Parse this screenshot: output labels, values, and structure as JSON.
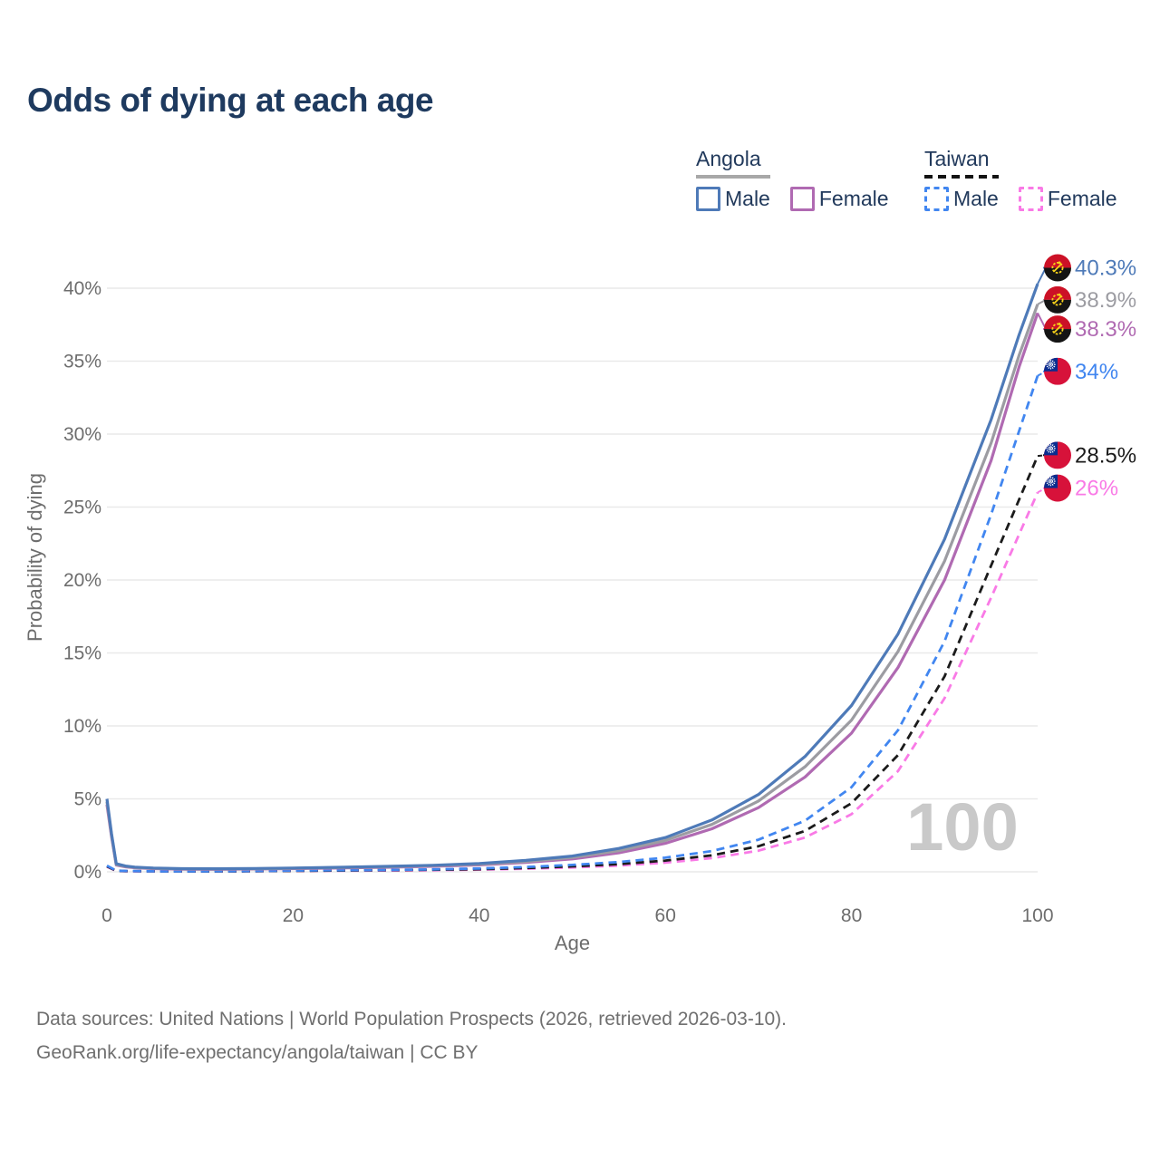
{
  "title": "Odds of dying at each age",
  "legend": {
    "groups": [
      {
        "country": "Angola",
        "line_style": "solid",
        "underline_color": "#a8a8a8",
        "items": [
          {
            "label": "Male",
            "color": "#4e7ab8",
            "dashed": false
          },
          {
            "label": "Female",
            "color": "#b06ab2",
            "dashed": false
          }
        ]
      },
      {
        "country": "Taiwan",
        "line_style": "dashed",
        "underline_color": "#131313",
        "items": [
          {
            "label": "Male",
            "color": "#4186f0",
            "dashed": true
          },
          {
            "label": "Female",
            "color": "#f97ae6",
            "dashed": true
          }
        ]
      }
    ]
  },
  "watermark": "100",
  "source": {
    "line1": "Data sources: United Nations | World Population Prospects (2026, retrieved 2026-03-10).",
    "line2": "GeoRank.org/life-expectancy/angola/taiwan | CC BY"
  },
  "chart_data": {
    "type": "line",
    "title": "Odds of dying at each age",
    "xlabel": "Age",
    "ylabel": "Probability of dying",
    "xlim": [
      0,
      100
    ],
    "ylim": [
      0,
      40
    ],
    "x_ticks": [
      0,
      20,
      40,
      60,
      80,
      100
    ],
    "x_tick_labels": [
      "0",
      "20",
      "40",
      "60",
      "80",
      "100"
    ],
    "y_ticks": [
      0,
      5,
      10,
      15,
      20,
      25,
      30,
      35,
      40
    ],
    "y_tick_labels": [
      "0%",
      "5%",
      "10%",
      "15%",
      "20%",
      "25%",
      "30%",
      "35%",
      "40%"
    ],
    "grid": "horizontal",
    "legend_position": "top-right",
    "units": "percent",
    "series": [
      {
        "name": "Angola Male",
        "color": "#4e7ab8",
        "dashed": false,
        "flag": "angola",
        "end_label": "40.3%",
        "end_value": 40.3,
        "label_at": 41.4,
        "points": [
          [
            0,
            5.0
          ],
          [
            0.5,
            2.6
          ],
          [
            1,
            0.55
          ],
          [
            2,
            0.4
          ],
          [
            3,
            0.32
          ],
          [
            5,
            0.26
          ],
          [
            8,
            0.22
          ],
          [
            12,
            0.21
          ],
          [
            16,
            0.23
          ],
          [
            20,
            0.26
          ],
          [
            25,
            0.31
          ],
          [
            30,
            0.37
          ],
          [
            35,
            0.45
          ],
          [
            40,
            0.57
          ],
          [
            45,
            0.78
          ],
          [
            50,
            1.08
          ],
          [
            55,
            1.6
          ],
          [
            60,
            2.35
          ],
          [
            65,
            3.55
          ],
          [
            70,
            5.3
          ],
          [
            75,
            7.9
          ],
          [
            80,
            11.4
          ],
          [
            85,
            16.3
          ],
          [
            90,
            22.8
          ],
          [
            95,
            31.0
          ],
          [
            98,
            36.8
          ],
          [
            100,
            40.3
          ]
        ]
      },
      {
        "name": "Angola Both Sexes",
        "color": "#9c9ca2",
        "dashed": false,
        "flag": "angola",
        "end_label": "38.9%",
        "end_value": 38.9,
        "label_at": 39.2,
        "points": [
          [
            0,
            4.8
          ],
          [
            0.5,
            2.5
          ],
          [
            1,
            0.5
          ],
          [
            2,
            0.37
          ],
          [
            3,
            0.3
          ],
          [
            5,
            0.24
          ],
          [
            8,
            0.2
          ],
          [
            12,
            0.19
          ],
          [
            16,
            0.21
          ],
          [
            20,
            0.24
          ],
          [
            25,
            0.29
          ],
          [
            30,
            0.34
          ],
          [
            35,
            0.42
          ],
          [
            40,
            0.52
          ],
          [
            45,
            0.71
          ],
          [
            50,
            0.98
          ],
          [
            55,
            1.45
          ],
          [
            60,
            2.15
          ],
          [
            65,
            3.25
          ],
          [
            70,
            4.85
          ],
          [
            75,
            7.2
          ],
          [
            80,
            10.4
          ],
          [
            85,
            15.1
          ],
          [
            90,
            21.3
          ],
          [
            95,
            29.4
          ],
          [
            98,
            35.4
          ],
          [
            100,
            38.9
          ]
        ]
      },
      {
        "name": "Angola Female",
        "color": "#b06ab2",
        "dashed": false,
        "flag": "angola",
        "end_label": "38.3%",
        "end_value": 38.3,
        "label_at": 37.2,
        "points": [
          [
            0,
            4.6
          ],
          [
            0.5,
            2.4
          ],
          [
            1,
            0.46
          ],
          [
            2,
            0.34
          ],
          [
            3,
            0.28
          ],
          [
            5,
            0.22
          ],
          [
            8,
            0.18
          ],
          [
            12,
            0.17
          ],
          [
            16,
            0.19
          ],
          [
            20,
            0.22
          ],
          [
            25,
            0.26
          ],
          [
            30,
            0.31
          ],
          [
            35,
            0.38
          ],
          [
            40,
            0.47
          ],
          [
            45,
            0.64
          ],
          [
            50,
            0.88
          ],
          [
            55,
            1.3
          ],
          [
            60,
            1.95
          ],
          [
            65,
            2.95
          ],
          [
            70,
            4.4
          ],
          [
            75,
            6.5
          ],
          [
            80,
            9.5
          ],
          [
            85,
            14.0
          ],
          [
            90,
            20.0
          ],
          [
            95,
            28.2
          ],
          [
            98,
            34.6
          ],
          [
            100,
            38.3
          ]
        ]
      },
      {
        "name": "Taiwan Male",
        "color": "#4186f0",
        "dashed": true,
        "flag": "taiwan",
        "end_label": "34%",
        "end_value": 34,
        "label_at": 34.3,
        "points": [
          [
            0,
            0.42
          ],
          [
            1,
            0.08
          ],
          [
            2,
            0.06
          ],
          [
            5,
            0.04
          ],
          [
            10,
            0.03
          ],
          [
            15,
            0.05
          ],
          [
            20,
            0.09
          ],
          [
            25,
            0.11
          ],
          [
            30,
            0.13
          ],
          [
            35,
            0.17
          ],
          [
            40,
            0.23
          ],
          [
            45,
            0.33
          ],
          [
            50,
            0.47
          ],
          [
            55,
            0.67
          ],
          [
            60,
            0.97
          ],
          [
            65,
            1.42
          ],
          [
            70,
            2.2
          ],
          [
            75,
            3.5
          ],
          [
            80,
            5.8
          ],
          [
            85,
            9.7
          ],
          [
            90,
            15.8
          ],
          [
            95,
            24.5
          ],
          [
            100,
            34.0
          ]
        ]
      },
      {
        "name": "Taiwan Both Sexes",
        "color": "#1b1b1b",
        "dashed": true,
        "flag": "taiwan",
        "end_label": "28.5%",
        "end_value": 28.5,
        "label_at": 28.55,
        "points": [
          [
            0,
            0.38
          ],
          [
            1,
            0.07
          ],
          [
            2,
            0.05
          ],
          [
            5,
            0.035
          ],
          [
            10,
            0.025
          ],
          [
            15,
            0.04
          ],
          [
            20,
            0.07
          ],
          [
            25,
            0.09
          ],
          [
            30,
            0.11
          ],
          [
            35,
            0.14
          ],
          [
            40,
            0.18
          ],
          [
            45,
            0.26
          ],
          [
            50,
            0.37
          ],
          [
            55,
            0.53
          ],
          [
            60,
            0.77
          ],
          [
            65,
            1.13
          ],
          [
            70,
            1.75
          ],
          [
            75,
            2.8
          ],
          [
            80,
            4.7
          ],
          [
            85,
            8.0
          ],
          [
            90,
            13.4
          ],
          [
            95,
            21.0
          ],
          [
            100,
            28.5
          ]
        ]
      },
      {
        "name": "Taiwan Female",
        "color": "#f97ae6",
        "dashed": true,
        "flag": "taiwan",
        "end_label": "26%",
        "end_value": 26,
        "label_at": 26.3,
        "points": [
          [
            0,
            0.35
          ],
          [
            1,
            0.06
          ],
          [
            2,
            0.04
          ],
          [
            5,
            0.03
          ],
          [
            10,
            0.02
          ],
          [
            15,
            0.035
          ],
          [
            20,
            0.06
          ],
          [
            25,
            0.075
          ],
          [
            30,
            0.09
          ],
          [
            35,
            0.11
          ],
          [
            40,
            0.15
          ],
          [
            45,
            0.21
          ],
          [
            50,
            0.3
          ],
          [
            55,
            0.43
          ],
          [
            60,
            0.63
          ],
          [
            65,
            0.94
          ],
          [
            70,
            1.45
          ],
          [
            75,
            2.35
          ],
          [
            80,
            3.95
          ],
          [
            85,
            6.9
          ],
          [
            90,
            11.9
          ],
          [
            95,
            18.8
          ],
          [
            100,
            26.0
          ]
        ]
      }
    ]
  }
}
